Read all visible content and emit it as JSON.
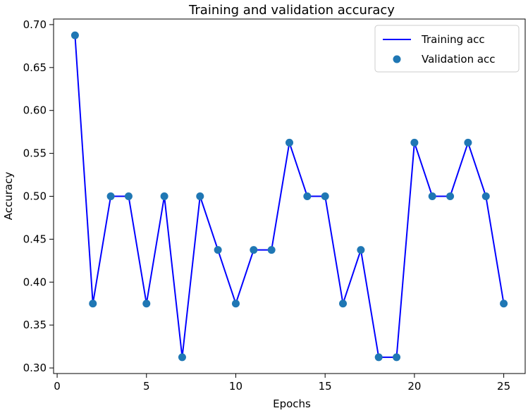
{
  "chart_data": {
    "type": "line",
    "title": "Training and validation accuracy",
    "xlabel": "Epochs",
    "ylabel": "Accuracy",
    "xlim": [
      -0.2,
      26.2
    ],
    "ylim": [
      0.2935,
      0.7065
    ],
    "xticks": [
      0,
      5,
      10,
      15,
      20,
      25
    ],
    "yticks": [
      0.3,
      0.35,
      0.4,
      0.45,
      0.5,
      0.55,
      0.6,
      0.65,
      0.7
    ],
    "grid": false,
    "legend_position": "top-right",
    "x": [
      1,
      2,
      3,
      4,
      5,
      6,
      7,
      8,
      9,
      10,
      11,
      12,
      13,
      14,
      15,
      16,
      17,
      18,
      19,
      20,
      21,
      22,
      23,
      24,
      25
    ],
    "series": [
      {
        "name": "Training acc",
        "style": "line",
        "color": "#0000ff",
        "values": [
          0.6875,
          0.375,
          0.5,
          0.5,
          0.375,
          0.5,
          0.3125,
          0.5,
          0.4375,
          0.375,
          0.4375,
          0.4375,
          0.5625,
          0.5,
          0.5,
          0.375,
          0.4375,
          0.3125,
          0.3125,
          0.5625,
          0.5,
          0.5,
          0.5625,
          0.5,
          0.375
        ]
      },
      {
        "name": "Validation acc",
        "style": "markers",
        "color": "#1f77b4",
        "values": [
          0.6875,
          0.375,
          0.5,
          0.5,
          0.375,
          0.5,
          0.3125,
          0.5,
          0.4375,
          0.375,
          0.4375,
          0.4375,
          0.5625,
          0.5,
          0.5,
          0.375,
          0.4375,
          0.3125,
          0.3125,
          0.5625,
          0.5,
          0.5,
          0.5625,
          0.5,
          0.375
        ]
      }
    ]
  }
}
